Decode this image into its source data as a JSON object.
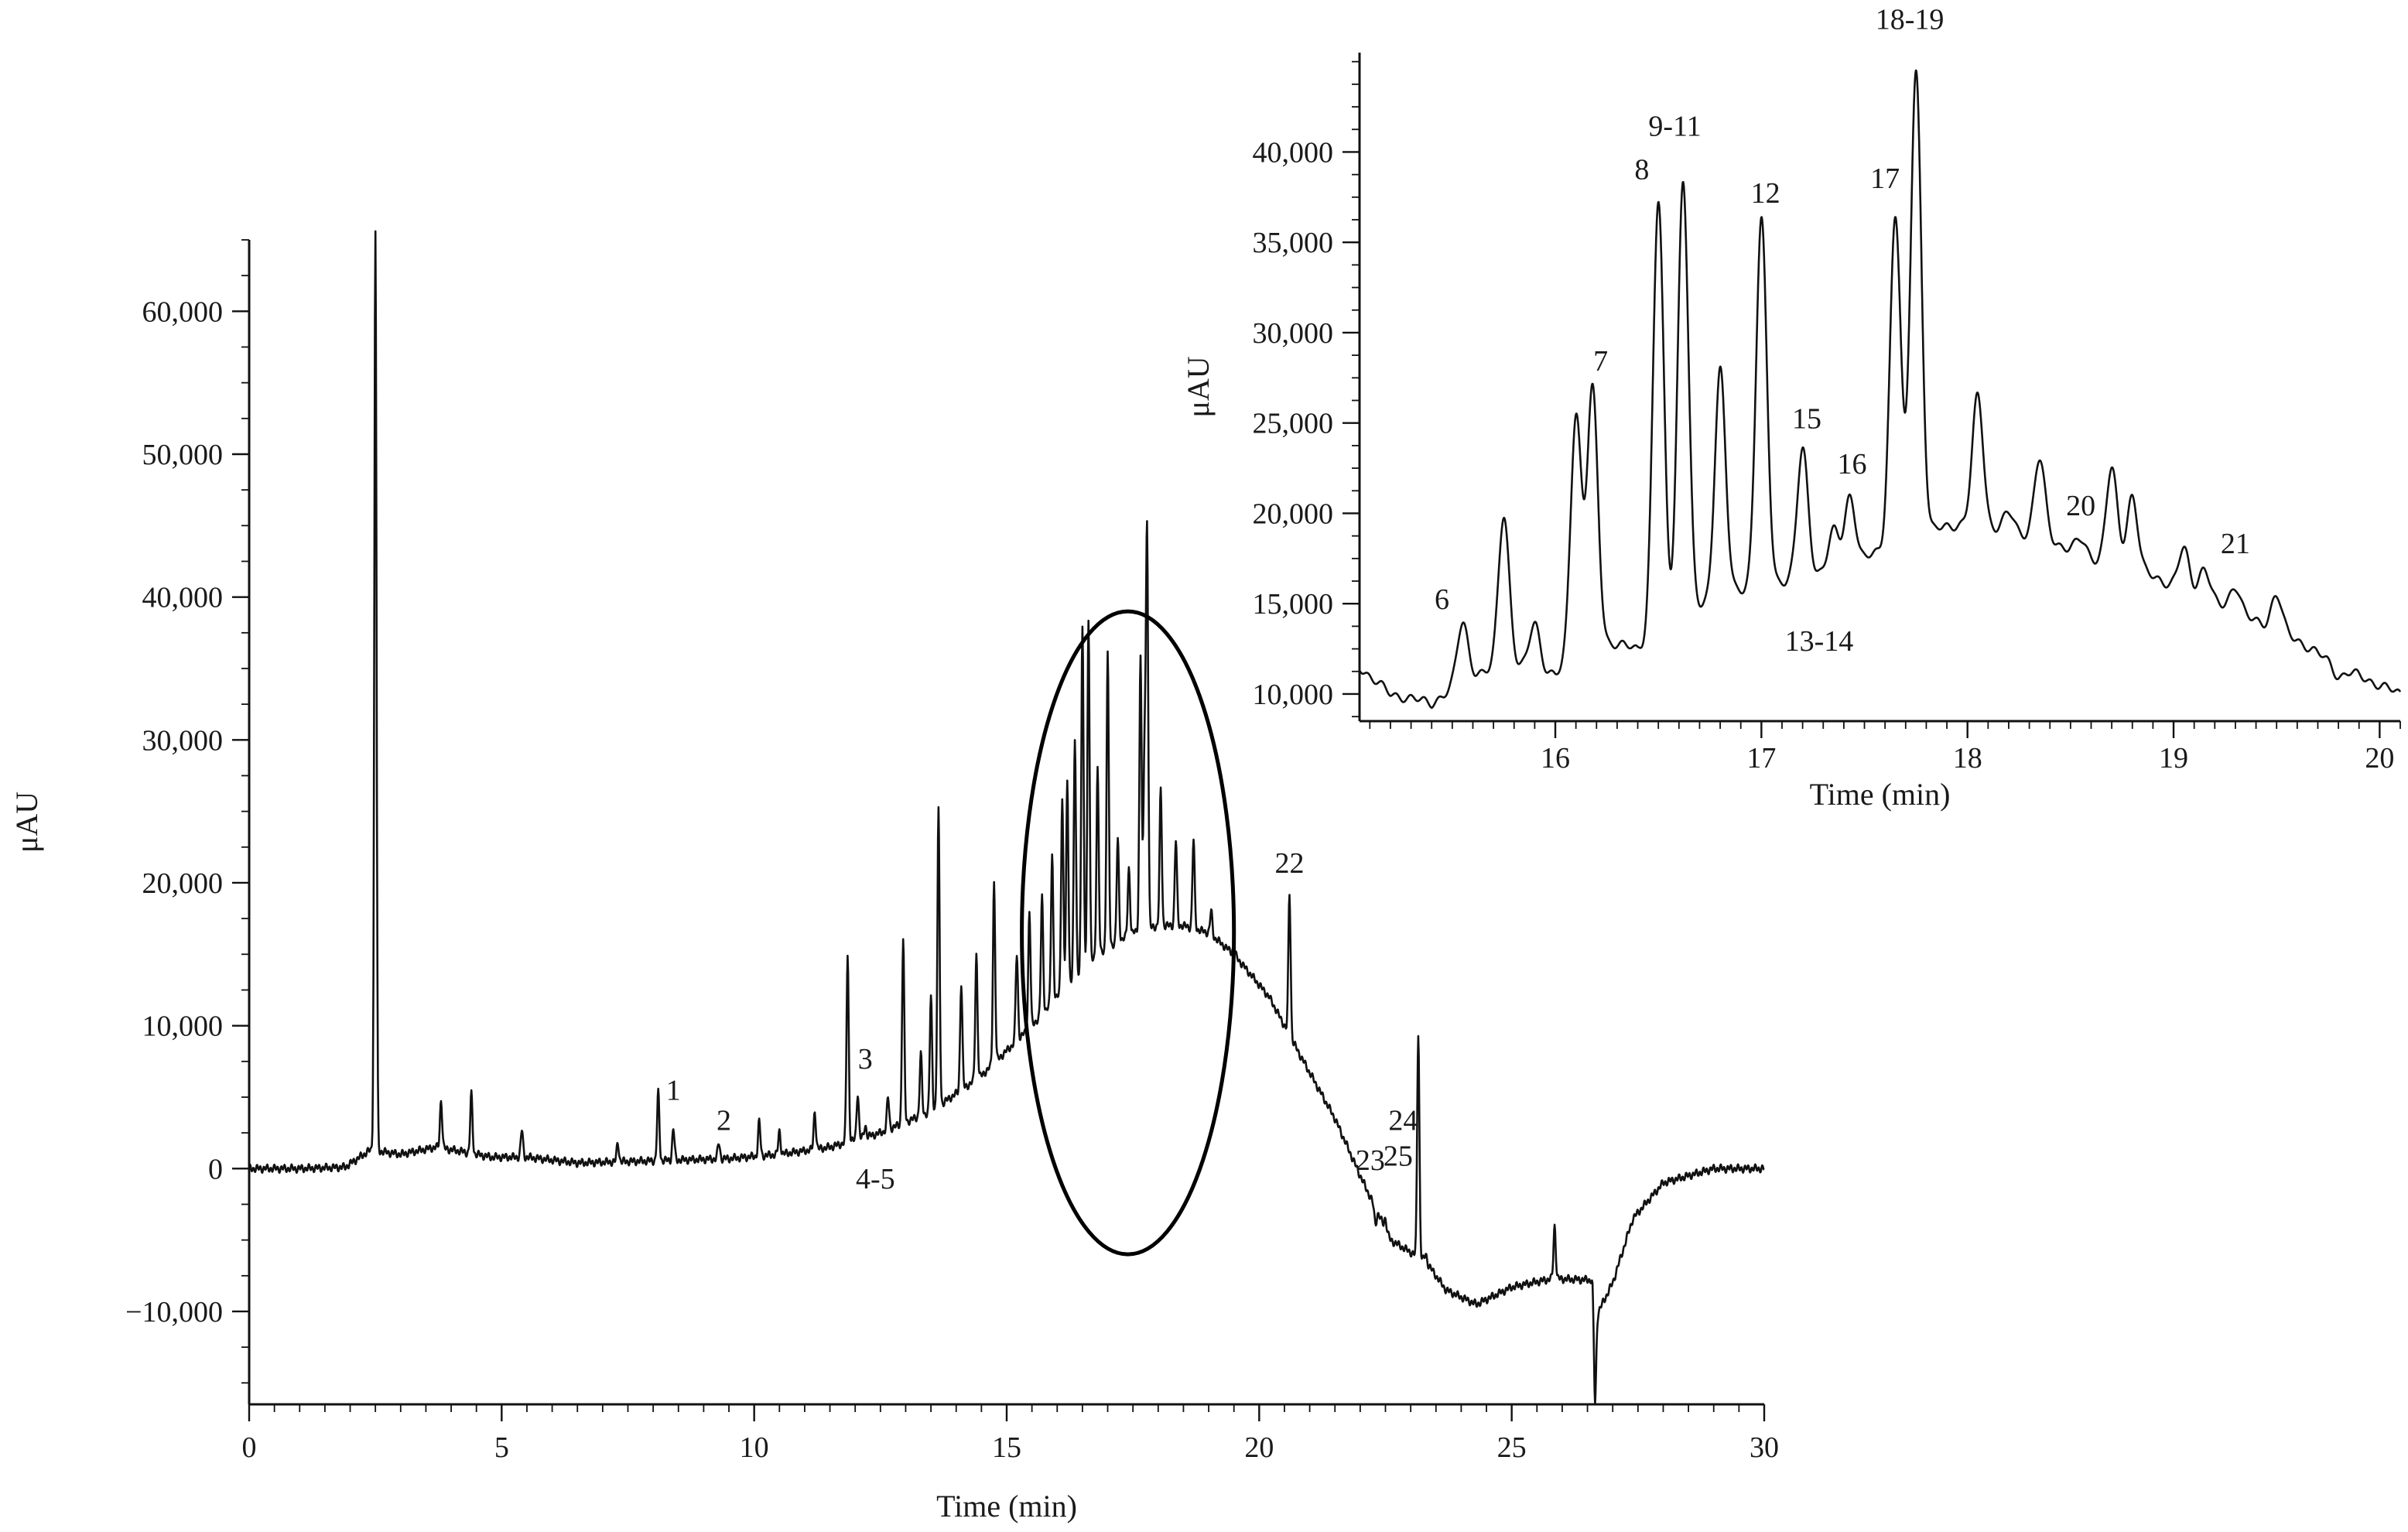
{
  "chart_data": [
    {
      "type": "line",
      "xlabel": "Time (min)",
      "ylabel": "μAU",
      "xlim": [
        0,
        30
      ],
      "ylim": [
        -16500,
        65000
      ],
      "x_ticks": [
        0,
        5,
        10,
        15,
        20,
        25,
        30
      ],
      "x_tick_labels": [
        "0",
        "5",
        "10",
        "15",
        "20",
        "25",
        "30"
      ],
      "y_ticks": [
        -10000,
        0,
        10000,
        20000,
        30000,
        40000,
        50000,
        60000
      ],
      "y_tick_labels": [
        "−10,000",
        "0",
        "10,000",
        "20,000",
        "30,000",
        "40,000",
        "50,000",
        "60,000"
      ],
      "grid": false,
      "series": [
        {
          "baseline": [
            [
              0,
              0
            ],
            [
              1,
              0
            ],
            [
              1.9,
              100
            ],
            [
              2.4,
              1300
            ],
            [
              3,
              1000
            ],
            [
              3.7,
              1500
            ],
            [
              4.2,
              1200
            ],
            [
              4.8,
              800
            ],
            [
              5.5,
              800
            ],
            [
              6.5,
              400
            ],
            [
              7.5,
              500
            ],
            [
              8.5,
              600
            ],
            [
              9.5,
              700
            ],
            [
              10.5,
              1000
            ],
            [
              11.5,
              1500
            ],
            [
              12.5,
              2500
            ],
            [
              13.5,
              4000
            ],
            [
              14.5,
              6500
            ],
            [
              15.5,
              10000
            ],
            [
              16.5,
              14000
            ],
            [
              17,
              15500
            ],
            [
              17.5,
              16500
            ],
            [
              18,
              17000
            ],
            [
              18.5,
              17000
            ],
            [
              19,
              16500
            ],
            [
              19.5,
              15000
            ],
            [
              20.2,
              12000
            ],
            [
              20.8,
              8000
            ],
            [
              21.5,
              3500
            ],
            [
              22,
              -500
            ],
            [
              22.6,
              -5000
            ],
            [
              23.3,
              -6500
            ],
            [
              23.7,
              -8500
            ],
            [
              24.3,
              -9500
            ],
            [
              25,
              -8300
            ],
            [
              25.8,
              -7700
            ],
            [
              26.6,
              -7800
            ],
            [
              26.65,
              -10500
            ],
            [
              27,
              -8000
            ],
            [
              27.4,
              -3500
            ],
            [
              28,
              -1000
            ],
            [
              29,
              0
            ],
            [
              30,
              0
            ]
          ],
          "peaks": [
            [
              2.5,
              64500
            ],
            [
              2.5,
              2300
            ],
            [
              3.8,
              4800
            ],
            [
              4.4,
              5200
            ],
            [
              5.4,
              2700
            ],
            [
              7.3,
              1800
            ],
            [
              8.1,
              5300
            ],
            [
              8.4,
              2800
            ],
            [
              9.3,
              1800
            ],
            [
              10.1,
              3300
            ],
            [
              10.5,
              2600
            ],
            [
              11.2,
              4000
            ],
            [
              11.85,
              15000
            ],
            [
              12.05,
              5300
            ],
            [
              12.2,
              3000
            ],
            [
              12.65,
              5000
            ],
            [
              12.95,
              16000
            ],
            [
              13.3,
              8000
            ],
            [
              13.5,
              12000
            ],
            [
              13.65,
              25000
            ],
            [
              14.1,
              13000
            ],
            [
              14.4,
              15000
            ],
            [
              14.75,
              20000
            ],
            [
              15.2,
              15000
            ],
            [
              15.45,
              18000
            ],
            [
              15.7,
              19000
            ],
            [
              15.9,
              22000
            ],
            [
              16.1,
              26000
            ],
            [
              16.2,
              27000
            ],
            [
              16.35,
              30000
            ],
            [
              16.5,
              38000
            ],
            [
              16.62,
              38500
            ],
            [
              16.8,
              28000
            ],
            [
              17.0,
              36000
            ],
            [
              17.2,
              23000
            ],
            [
              17.42,
              21000
            ],
            [
              17.65,
              36000
            ],
            [
              17.73,
              29000
            ],
            [
              17.78,
              44500
            ],
            [
              18.05,
              26500
            ],
            [
              18.35,
              23000
            ],
            [
              18.7,
              23000
            ],
            [
              19.05,
              18000
            ],
            [
              19.5,
              15500
            ],
            [
              20.6,
              19300
            ],
            [
              22.3,
              -3800
            ],
            [
              22.5,
              -3500
            ],
            [
              23.15,
              9500
            ],
            [
              23.3,
              -6000
            ],
            [
              25.85,
              -4000
            ],
            [
              26.65,
              -16500
            ]
          ],
          "peak_width": 0.022
        }
      ],
      "annotations": [
        {
          "text": "1",
          "x": 8.4,
          "y": 4800
        },
        {
          "text": "2",
          "x": 9.4,
          "y": 2700
        },
        {
          "text": "3",
          "x": 12.2,
          "y": 7000
        },
        {
          "text": "4-5",
          "x": 12.4,
          "y": -1400
        },
        {
          "text": "22",
          "x": 20.6,
          "y": 20700
        },
        {
          "text": "23",
          "x": 22.2,
          "y": -100
        },
        {
          "text": "24",
          "x": 22.85,
          "y": 2700
        },
        {
          "text": "25",
          "x": 22.75,
          "y": 200
        }
      ],
      "highlight_ellipse": {
        "cx": 17.4,
        "cy": 16500,
        "rx": 2.1,
        "ry": 22500
      }
    },
    {
      "type": "line",
      "inset": true,
      "xlabel": "Time (min)",
      "ylabel": "μAU",
      "xlim": [
        15.05,
        20.1
      ],
      "ylim": [
        8500,
        45500
      ],
      "x_ticks": [
        16,
        17,
        18,
        19,
        20
      ],
      "x_tick_labels": [
        "16",
        "17",
        "18",
        "19",
        "20"
      ],
      "y_ticks": [
        10000,
        15000,
        20000,
        25000,
        30000,
        35000,
        40000
      ],
      "y_tick_labels": [
        "10,000",
        "15,000",
        "20,000",
        "25,000",
        "30,000",
        "35,000",
        "40,000"
      ],
      "grid": false,
      "series": [
        {
          "baseline": [
            [
              15.05,
              11500
            ],
            [
              15.2,
              10000
            ],
            [
              15.4,
              9500
            ],
            [
              15.6,
              11000
            ],
            [
              15.8,
              11500
            ],
            [
              16.0,
              11000
            ],
            [
              16.2,
              13000
            ],
            [
              16.4,
              12500
            ],
            [
              16.6,
              14000
            ],
            [
              16.8,
              15500
            ],
            [
              17,
              16000
            ],
            [
              17.2,
              16500
            ],
            [
              17.4,
              17000
            ],
            [
              17.6,
              18000
            ],
            [
              17.8,
              19000
            ],
            [
              18,
              19500
            ],
            [
              18.2,
              19000
            ],
            [
              18.4,
              18500
            ],
            [
              18.6,
              17500
            ],
            [
              18.8,
              17000
            ],
            [
              19,
              16000
            ],
            [
              19.2,
              15000
            ],
            [
              19.4,
              14000
            ],
            [
              19.6,
              13000
            ],
            [
              19.8,
              11500
            ],
            [
              20.1,
              10000
            ]
          ],
          "peaks": [
            [
              15.55,
              14000
            ],
            [
              15.75,
              20000
            ],
            [
              15.9,
              14000
            ],
            [
              16.1,
              25500
            ],
            [
              16.18,
              26800
            ],
            [
              16.5,
              37300
            ],
            [
              16.62,
              38500
            ],
            [
              16.8,
              28000
            ],
            [
              17.0,
              36200
            ],
            [
              17.2,
              23500
            ],
            [
              17.35,
              19000
            ],
            [
              17.43,
              21000
            ],
            [
              17.65,
              36500
            ],
            [
              17.75,
              44500
            ],
            [
              18.05,
              26500
            ],
            [
              18.2,
              20000
            ],
            [
              18.35,
              23000
            ],
            [
              18.55,
              18500
            ],
            [
              18.7,
              22500
            ],
            [
              18.8,
              21000
            ],
            [
              19.05,
              18000
            ],
            [
              19.15,
              17000
            ],
            [
              19.3,
              16000
            ],
            [
              19.5,
              15500
            ],
            [
              19.8,
              11000
            ]
          ],
          "peak_width": 0.026
        }
      ],
      "annotations": [
        {
          "text": "6",
          "x": 15.45,
          "y": 14700
        },
        {
          "text": "7",
          "x": 16.22,
          "y": 27900
        },
        {
          "text": "8",
          "x": 16.42,
          "y": 38500
        },
        {
          "text": "9-11",
          "x": 16.58,
          "y": 40900
        },
        {
          "text": "12",
          "x": 17.02,
          "y": 37200
        },
        {
          "text": "13-14",
          "x": 17.28,
          "y": 12400
        },
        {
          "text": "15",
          "x": 17.22,
          "y": 24700
        },
        {
          "text": "16",
          "x": 17.44,
          "y": 22200
        },
        {
          "text": "17",
          "x": 17.6,
          "y": 38000
        },
        {
          "text": "18-19",
          "x": 17.72,
          "y": 46800
        },
        {
          "text": "20",
          "x": 18.55,
          "y": 19900
        },
        {
          "text": "21",
          "x": 19.3,
          "y": 17800
        }
      ]
    }
  ],
  "colors": {
    "trace": "#111111",
    "axes": "#111111",
    "text": "#1a1a1a",
    "background": "#ffffff"
  }
}
